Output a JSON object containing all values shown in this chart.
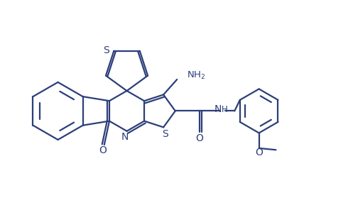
{
  "bg_color": "#ffffff",
  "line_color": "#2c3e7a",
  "line_width": 1.6,
  "figsize": [
    4.97,
    2.89
  ],
  "dpi": 100,
  "xlim": [
    0,
    10
  ],
  "ylim": [
    0,
    6
  ]
}
